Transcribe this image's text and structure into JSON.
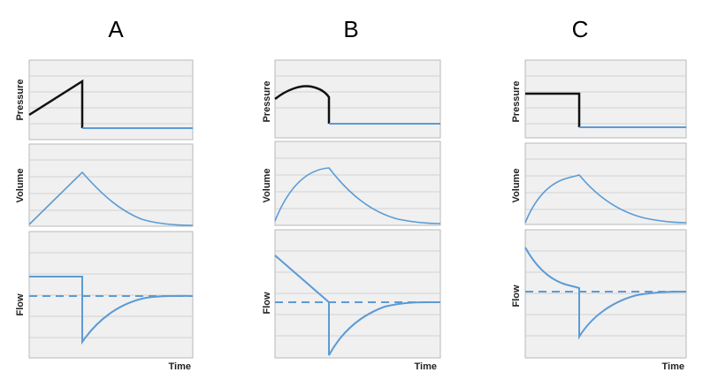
{
  "figure": {
    "columns": [
      {
        "id": "A",
        "label": "A",
        "panels": [
          {
            "key": "pressure",
            "ylabel": "Pressure"
          },
          {
            "key": "volume",
            "ylabel": "Volume"
          },
          {
            "key": "flow",
            "ylabel": "Flow"
          }
        ],
        "time_label": "Time"
      },
      {
        "id": "B",
        "label": "B",
        "panels": [
          {
            "key": "pressure",
            "ylabel": "Pressure"
          },
          {
            "key": "volume",
            "ylabel": "Volume"
          },
          {
            "key": "flow",
            "ylabel": "Flow"
          }
        ],
        "time_label": "Time"
      },
      {
        "id": "C",
        "label": "C",
        "panels": [
          {
            "key": "pressure",
            "ylabel": "Pressure"
          },
          {
            "key": "volume",
            "ylabel": "Volume"
          },
          {
            "key": "flow",
            "ylabel": "Flow"
          }
        ],
        "time_label": "Time"
      }
    ],
    "colors": {
      "panel_background": "#f0f0f0",
      "grid": "#d2d2d2",
      "border": "#b8b8b8",
      "pressure_inspiration": "#111111",
      "curve": "#5b9bd5"
    }
  }
}
